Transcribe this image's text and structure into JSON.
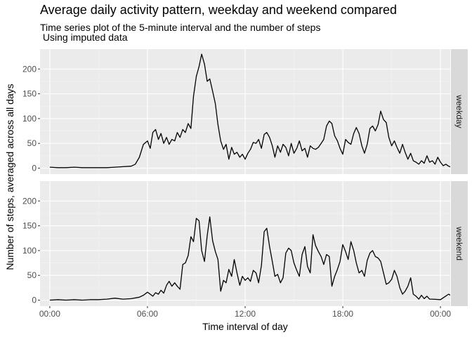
{
  "title": "Average daily activity pattern, weekday and weekend compared",
  "subtitle": "Time series plot of the 5-minute interval and the number of steps\n Using imputed data",
  "chart_data": {
    "type": "line",
    "title": "Average daily activity pattern, weekday and weekend compared",
    "subtitle": "Time series plot of the 5-minute interval and the number of steps\n Using imputed data",
    "xlabel": "Time interval of day",
    "ylabel": "Number of steps, averaged across all days",
    "x_unit": "hours",
    "xlim": [
      -0.6,
      24.6
    ],
    "ylim": [
      -12,
      240
    ],
    "x_ticks": [
      0,
      6,
      12,
      18,
      24
    ],
    "x_tick_labels": [
      "00:00",
      "06:00",
      "12:00",
      "18:00",
      "00:00"
    ],
    "y_ticks": [
      0,
      50,
      100,
      150,
      200
    ],
    "y_tick_labels": [
      "0",
      "50",
      "100",
      "150",
      "200"
    ],
    "grid": true,
    "panels": [
      {
        "label": "weekday",
        "points": [
          [
            0,
            2
          ],
          [
            0.5,
            1
          ],
          [
            1,
            1
          ],
          [
            1.5,
            2
          ],
          [
            2,
            1
          ],
          [
            2.5,
            1
          ],
          [
            3,
            1
          ],
          [
            3.5,
            1
          ],
          [
            4,
            2
          ],
          [
            4.5,
            3
          ],
          [
            5,
            4
          ],
          [
            5.25,
            8
          ],
          [
            5.5,
            22
          ],
          [
            5.75,
            48
          ],
          [
            6,
            55
          ],
          [
            6.17,
            40
          ],
          [
            6.33,
            72
          ],
          [
            6.5,
            78
          ],
          [
            6.67,
            58
          ],
          [
            6.83,
            70
          ],
          [
            7,
            50
          ],
          [
            7.17,
            62
          ],
          [
            7.33,
            48
          ],
          [
            7.5,
            58
          ],
          [
            7.67,
            55
          ],
          [
            7.83,
            72
          ],
          [
            8,
            62
          ],
          [
            8.17,
            78
          ],
          [
            8.33,
            72
          ],
          [
            8.5,
            90
          ],
          [
            8.67,
            80
          ],
          [
            8.83,
            145
          ],
          [
            9,
            185
          ],
          [
            9.17,
            205
          ],
          [
            9.33,
            230
          ],
          [
            9.5,
            210
          ],
          [
            9.67,
            175
          ],
          [
            9.83,
            180
          ],
          [
            10,
            155
          ],
          [
            10.17,
            130
          ],
          [
            10.33,
            88
          ],
          [
            10.5,
            55
          ],
          [
            10.67,
            38
          ],
          [
            10.83,
            48
          ],
          [
            11,
            18
          ],
          [
            11.17,
            42
          ],
          [
            11.33,
            28
          ],
          [
            11.5,
            32
          ],
          [
            11.67,
            22
          ],
          [
            11.83,
            28
          ],
          [
            12,
            18
          ],
          [
            12.17,
            30
          ],
          [
            12.33,
            38
          ],
          [
            12.5,
            52
          ],
          [
            12.67,
            50
          ],
          [
            12.83,
            58
          ],
          [
            13,
            40
          ],
          [
            13.17,
            68
          ],
          [
            13.33,
            72
          ],
          [
            13.5,
            62
          ],
          [
            13.67,
            45
          ],
          [
            13.83,
            22
          ],
          [
            14,
            45
          ],
          [
            14.17,
            32
          ],
          [
            14.33,
            48
          ],
          [
            14.5,
            42
          ],
          [
            14.67,
            25
          ],
          [
            14.83,
            50
          ],
          [
            15,
            30
          ],
          [
            15.17,
            40
          ],
          [
            15.33,
            55
          ],
          [
            15.5,
            35
          ],
          [
            15.67,
            40
          ],
          [
            15.83,
            22
          ],
          [
            16,
            45
          ],
          [
            16.17,
            40
          ],
          [
            16.33,
            38
          ],
          [
            16.5,
            42
          ],
          [
            16.67,
            50
          ],
          [
            16.83,
            58
          ],
          [
            17,
            85
          ],
          [
            17.17,
            95
          ],
          [
            17.33,
            90
          ],
          [
            17.5,
            65
          ],
          [
            17.67,
            55
          ],
          [
            17.83,
            40
          ],
          [
            18,
            28
          ],
          [
            18.17,
            58
          ],
          [
            18.33,
            52
          ],
          [
            18.5,
            48
          ],
          [
            18.67,
            70
          ],
          [
            18.83,
            82
          ],
          [
            19,
            70
          ],
          [
            19.17,
            45
          ],
          [
            19.33,
            30
          ],
          [
            19.5,
            48
          ],
          [
            19.67,
            80
          ],
          [
            19.83,
            85
          ],
          [
            20,
            75
          ],
          [
            20.17,
            88
          ],
          [
            20.33,
            115
          ],
          [
            20.5,
            98
          ],
          [
            20.67,
            92
          ],
          [
            20.83,
            62
          ],
          [
            21,
            45
          ],
          [
            21.17,
            55
          ],
          [
            21.33,
            42
          ],
          [
            21.5,
            30
          ],
          [
            21.67,
            48
          ],
          [
            21.83,
            32
          ],
          [
            22,
            18
          ],
          [
            22.17,
            30
          ],
          [
            22.33,
            15
          ],
          [
            22.5,
            12
          ],
          [
            22.67,
            8
          ],
          [
            22.83,
            15
          ],
          [
            23,
            10
          ],
          [
            23.17,
            25
          ],
          [
            23.33,
            12
          ],
          [
            23.5,
            15
          ],
          [
            23.67,
            8
          ],
          [
            23.83,
            22
          ],
          [
            24,
            12
          ],
          [
            24.17,
            5
          ],
          [
            24.33,
            8
          ],
          [
            24.5,
            4
          ],
          [
            24.67,
            2
          ],
          [
            24.83,
            3
          ],
          [
            25,
            2
          ],
          [
            25.5,
            4
          ],
          [
            26,
            3
          ],
          [
            26.5,
            2
          ],
          [
            27,
            2
          ]
        ]
      },
      {
        "label": "weekend",
        "points": [
          [
            0,
            0
          ],
          [
            0.5,
            1
          ],
          [
            1,
            0
          ],
          [
            1.5,
            1
          ],
          [
            2,
            0
          ],
          [
            2.5,
            1
          ],
          [
            3,
            1
          ],
          [
            3.5,
            2
          ],
          [
            4,
            4
          ],
          [
            4.5,
            2
          ],
          [
            5,
            3
          ],
          [
            5.5,
            6
          ],
          [
            5.75,
            10
          ],
          [
            6,
            16
          ],
          [
            6.17,
            12
          ],
          [
            6.33,
            8
          ],
          [
            6.5,
            15
          ],
          [
            6.67,
            12
          ],
          [
            6.83,
            20
          ],
          [
            7,
            14
          ],
          [
            7.17,
            30
          ],
          [
            7.33,
            38
          ],
          [
            7.5,
            28
          ],
          [
            7.67,
            35
          ],
          [
            7.83,
            28
          ],
          [
            8,
            22
          ],
          [
            8.17,
            72
          ],
          [
            8.33,
            75
          ],
          [
            8.5,
            90
          ],
          [
            8.67,
            128
          ],
          [
            8.83,
            118
          ],
          [
            9,
            165
          ],
          [
            9.17,
            160
          ],
          [
            9.33,
            100
          ],
          [
            9.5,
            78
          ],
          [
            9.67,
            130
          ],
          [
            9.83,
            168
          ],
          [
            10,
            120
          ],
          [
            10.17,
            98
          ],
          [
            10.33,
            82
          ],
          [
            10.5,
            18
          ],
          [
            10.67,
            40
          ],
          [
            10.83,
            35
          ],
          [
            11,
            62
          ],
          [
            11.17,
            48
          ],
          [
            11.33,
            82
          ],
          [
            11.5,
            55
          ],
          [
            11.67,
            30
          ],
          [
            11.83,
            48
          ],
          [
            12,
            40
          ],
          [
            12.17,
            45
          ],
          [
            12.33,
            38
          ],
          [
            12.5,
            60
          ],
          [
            12.67,
            55
          ],
          [
            12.83,
            35
          ],
          [
            13,
            70
          ],
          [
            13.17,
            138
          ],
          [
            13.33,
            145
          ],
          [
            13.5,
            108
          ],
          [
            13.67,
            78
          ],
          [
            13.83,
            48
          ],
          [
            14,
            52
          ],
          [
            14.17,
            35
          ],
          [
            14.33,
            45
          ],
          [
            14.5,
            95
          ],
          [
            14.67,
            105
          ],
          [
            14.83,
            100
          ],
          [
            15,
            75
          ],
          [
            15.17,
            60
          ],
          [
            15.33,
            48
          ],
          [
            15.5,
            92
          ],
          [
            15.67,
            108
          ],
          [
            15.83,
            68
          ],
          [
            16,
            55
          ],
          [
            16.17,
            132
          ],
          [
            16.33,
            110
          ],
          [
            16.5,
            98
          ],
          [
            16.67,
            88
          ],
          [
            16.83,
            72
          ],
          [
            17,
            92
          ],
          [
            17.17,
            88
          ],
          [
            17.33,
            28
          ],
          [
            17.5,
            48
          ],
          [
            17.67,
            62
          ],
          [
            17.83,
            78
          ],
          [
            18,
            112
          ],
          [
            18.17,
            98
          ],
          [
            18.33,
            82
          ],
          [
            18.5,
            118
          ],
          [
            18.67,
            100
          ],
          [
            18.83,
            75
          ],
          [
            19,
            55
          ],
          [
            19.17,
            60
          ],
          [
            19.33,
            48
          ],
          [
            19.5,
            80
          ],
          [
            19.67,
            95
          ],
          [
            19.83,
            100
          ],
          [
            20,
            88
          ],
          [
            20.17,
            85
          ],
          [
            20.33,
            78
          ],
          [
            20.5,
            55
          ],
          [
            20.67,
            32
          ],
          [
            20.83,
            35
          ],
          [
            21,
            42
          ],
          [
            21.17,
            60
          ],
          [
            21.33,
            48
          ],
          [
            21.5,
            25
          ],
          [
            21.67,
            12
          ],
          [
            21.83,
            18
          ],
          [
            22,
            28
          ],
          [
            22.17,
            45
          ],
          [
            22.33,
            12
          ],
          [
            22.5,
            8
          ],
          [
            22.67,
            2
          ],
          [
            22.83,
            10
          ],
          [
            23,
            3
          ],
          [
            23.17,
            8
          ],
          [
            23.33,
            2
          ],
          [
            23.5,
            2
          ],
          [
            24,
            1
          ],
          [
            24.5,
            12
          ],
          [
            25,
            2
          ],
          [
            25.5,
            1
          ],
          [
            26,
            8
          ],
          [
            26.5,
            0
          ]
        ]
      }
    ]
  }
}
